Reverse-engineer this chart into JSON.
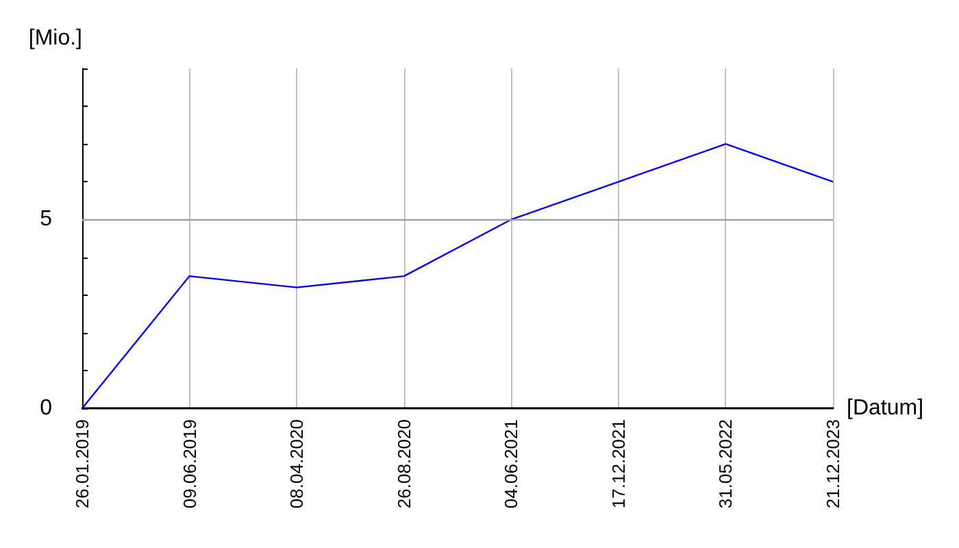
{
  "chart_data": {
    "type": "line",
    "xlabel": "[Datum]",
    "ylabel": "[Mio.]",
    "categories": [
      "26.01.2019",
      "09.06.2019",
      "08.04.2020",
      "26.08.2020",
      "04.06.2021",
      "17.12.2021",
      "31.05.2022",
      "21.12.2023"
    ],
    "series": [
      {
        "color": "#0000ff",
        "values": [
          0,
          3.5,
          3.2,
          3.5,
          5,
          6,
          7,
          6
        ]
      }
    ],
    "ylim": [
      0,
      9
    ],
    "yticks": [
      0,
      {
        "value": 1,
        "label": null
      },
      {
        "value": 2,
        "label": null
      },
      {
        "value": 3,
        "label": null
      },
      {
        "value": 4,
        "label": null
      },
      5,
      {
        "value": 6,
        "label": null
      },
      {
        "value": 7,
        "label": null
      },
      {
        "value": 8,
        "label": null
      },
      {
        "value": 9,
        "label": null
      }
    ],
    "ref_lines": [
      {
        "axis": "y",
        "value": 5,
        "color": "#a0a0a0"
      }
    ],
    "grid": "x",
    "marker": "none",
    "line_style": "solid"
  }
}
